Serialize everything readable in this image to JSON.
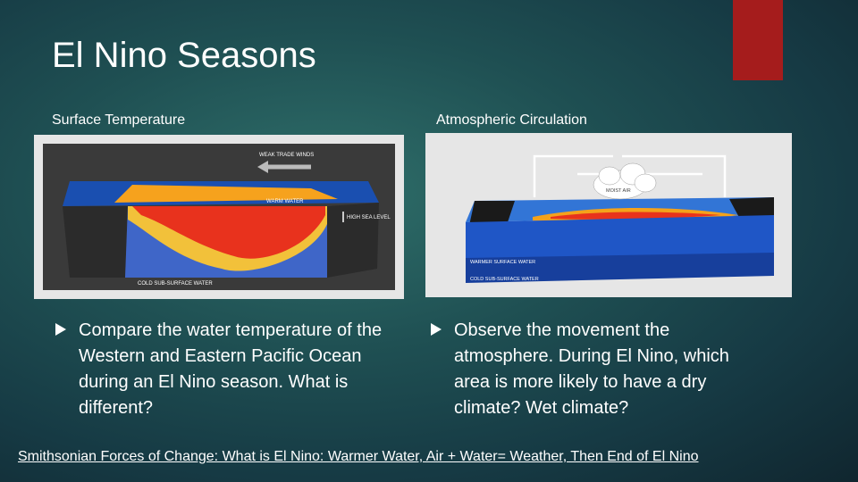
{
  "slide": {
    "title": "El Nino Seasons",
    "accent_color": "#a51c1c"
  },
  "left": {
    "label": "Surface Temperature",
    "figure": {
      "icon": "el-nino-ocean-temperature-diagram",
      "labels": {
        "trade_winds": "WEAK TRADE WINDS",
        "warm_water": "WARM WATER",
        "high_sea_level": "HIGH SEA LEVEL",
        "cold_subsurface": "COLD SUB-SURFACE WATER"
      }
    },
    "bullet": "Compare the water temperature of the Western and Eastern Pacific Ocean during an El Nino season.  What is different?"
  },
  "right": {
    "label": "Atmospheric Circulation",
    "figure": {
      "icon": "el-nino-atmospheric-circulation-diagram",
      "labels": {
        "moist_air": "MOIST AIR",
        "warmer_surface": "WARMER SURFACE WATER",
        "cold_subsurface": "COLD SUB-SURFACE WATER"
      }
    },
    "bullet": "Observe the movement the atmosphere.  During El Nino, which area is more likely to have a dry climate?  Wet climate?"
  },
  "footer": {
    "link_text": "Smithsonian Forces of Change: What is El Nino: Warmer Water, Air + Water= Weather, Then End of El Nino"
  }
}
